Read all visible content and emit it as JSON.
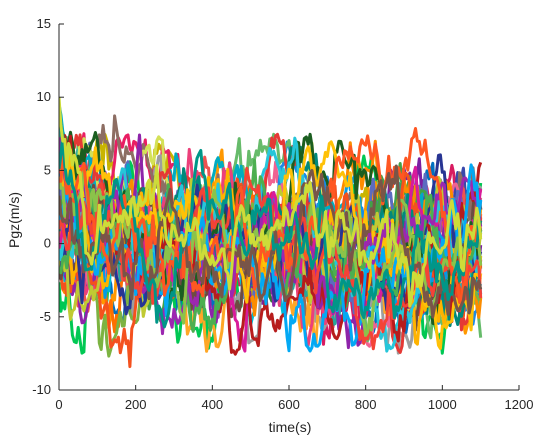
{
  "chart_data": {
    "type": "line",
    "title": "",
    "xlabel": "time(s)",
    "ylabel": "Pgz(m/s)",
    "xlim": [
      0,
      1200
    ],
    "ylim": [
      -10,
      15
    ],
    "xticks": [
      0,
      200,
      400,
      600,
      800,
      1000,
      1200
    ],
    "yticks": [
      -10,
      -5,
      0,
      5,
      10,
      15
    ],
    "xtick_labels": [
      "0",
      "200",
      "400",
      "600",
      "800",
      "1000",
      "1200"
    ],
    "ytick_labels": [
      "-10",
      "-5",
      "0",
      "5",
      "10",
      "15"
    ],
    "grid": false,
    "box": "top-right open",
    "x_range_of_series": [
      0,
      1100
    ],
    "series_count": 50,
    "notes": "Many overlapping random-walk series, each starting near 0–12 at t=0 and fluctuating mostly within about -5 to +5, with rare excursions to about -8 and +8.",
    "colors": [
      "#0070c0",
      "#d81b60",
      "#00c853",
      "#ff9800",
      "#7b1fa2",
      "#00bcd4",
      "#c8b400",
      "#e91e63",
      "#2e7d32",
      "#ff6f00",
      "#3949ab",
      "#9e9e9e",
      "#8d6e63",
      "#f06292",
      "#26a69a",
      "#ab47bc",
      "#1e88e5",
      "#ef5350",
      "#66bb6a",
      "#ffa726",
      "#5c6bc0",
      "#00acc1",
      "#d4e157",
      "#ec407a",
      "#43a047",
      "#fb8c00",
      "#8e24aa",
      "#039be5",
      "#e53935",
      "#7cb342",
      "#f4511e",
      "#6d4c41",
      "#00897b",
      "#c0ca33",
      "#d81b9b",
      "#1b5e20",
      "#ffb300",
      "#283593",
      "#26c6da",
      "#b71c1c",
      "#4caf50",
      "#ffc107",
      "#9c27b0",
      "#03a9f4",
      "#f44336",
      "#8bc34a",
      "#ff5722",
      "#795548",
      "#009688",
      "#cddc39"
    ]
  }
}
